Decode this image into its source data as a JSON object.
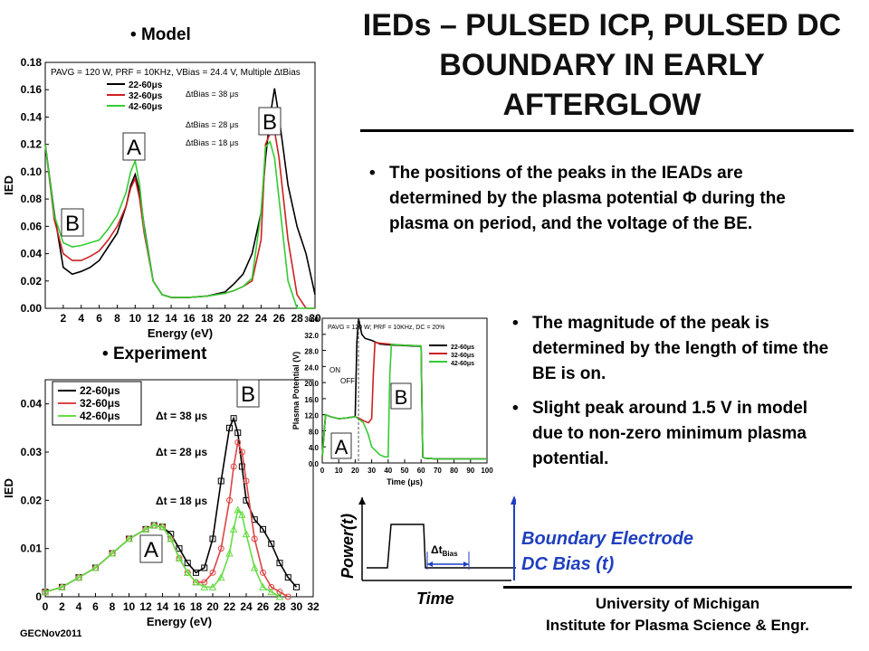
{
  "title": "IEDs – PULSED ICP, PULSED DC BOUNDARY IN EARLY AFTERGLOW",
  "bullets_right": [
    "The positions of the peaks in the IEADs are determined by the plasma potential Φ during the plasma on period, and the voltage of the BE."
  ],
  "bullets_mid": [
    "The magnitude of the peak is determined by the length of time the BE is on.",
    "Slight peak around 1.5 V in model due to non-zero minimum plasma potential."
  ],
  "labels": {
    "model": "Model",
    "experiment": "Experiment",
    "bullet_symbol": "•",
    "bullet_symbol2": ""
  },
  "footer": {
    "left": "GECNov2011",
    "univ_line1": "University of Michigan",
    "univ_line2": "Institute for Plasma Science & Engr."
  },
  "timing": {
    "ylabel": "Power(t)",
    "xlabel": "Time",
    "dt_label": "Δt",
    "dt_sub": "Bias",
    "bias_line1": "Boundary Electrode",
    "bias_line2": "DC Bias (t)"
  },
  "chart_data": [
    {
      "id": "model",
      "type": "line",
      "title": "P_AVG = 120 W, PRF = 10KHz, V_Bias = 24.4 V, Multiple Δt_Bias",
      "xlabel": "Energy (eV)",
      "ylabel": "IED",
      "xlim": [
        0,
        30
      ],
      "ylim": [
        0,
        0.18
      ],
      "xticks": [
        "2",
        "4",
        "6",
        "8",
        "10",
        "12",
        "14",
        "16",
        "18",
        "20",
        "22",
        "24",
        "26",
        "28",
        "30"
      ],
      "yticks": [
        "0.00",
        "0.02",
        "0.04",
        "0.06",
        "0.08",
        "0.10",
        "0.12",
        "0.14",
        "0.16",
        "0.18"
      ],
      "legend": [
        "22-60μs",
        "32-60μs",
        "42-60μs"
      ],
      "annotations": [
        "Δt_Bias = 38 μs",
        "Δt_Bias = 28 μs",
        "Δt_Bias = 18 μs",
        "A",
        "B",
        "B"
      ],
      "series": [
        {
          "name": "22-60μs",
          "color": "#000000",
          "x": [
            0,
            1,
            2,
            3,
            4,
            5,
            6,
            7,
            8,
            9,
            9.5,
            10,
            10.5,
            11,
            12,
            13,
            14,
            16,
            18,
            20,
            21,
            22,
            23,
            24,
            24.5,
            25,
            25.5,
            26,
            27,
            28,
            29,
            30
          ],
          "y": [
            0.12,
            0.07,
            0.03,
            0.025,
            0.027,
            0.03,
            0.035,
            0.045,
            0.055,
            0.075,
            0.09,
            0.098,
            0.085,
            0.06,
            0.02,
            0.01,
            0.008,
            0.008,
            0.009,
            0.012,
            0.018,
            0.025,
            0.04,
            0.07,
            0.11,
            0.14,
            0.161,
            0.14,
            0.09,
            0.06,
            0.04,
            0.01
          ]
        },
        {
          "name": "32-60μs",
          "color": "#cc2020",
          "x": [
            0,
            1,
            2,
            3,
            4,
            5,
            6,
            7,
            8,
            9,
            9.5,
            10,
            10.5,
            11,
            12,
            13,
            14,
            16,
            18,
            20,
            21,
            22,
            23,
            24,
            24.5,
            25,
            25.5,
            26,
            27,
            28,
            29,
            30
          ],
          "y": [
            0.12,
            0.065,
            0.04,
            0.035,
            0.035,
            0.038,
            0.042,
            0.05,
            0.06,
            0.075,
            0.088,
            0.095,
            0.08,
            0.055,
            0.02,
            0.01,
            0.008,
            0.008,
            0.009,
            0.011,
            0.013,
            0.016,
            0.02,
            0.05,
            0.12,
            0.128,
            0.13,
            0.11,
            0.05,
            0.01,
            0.0,
            0.0
          ]
        },
        {
          "name": "42-60μs",
          "color": "#33cc33",
          "x": [
            0,
            1,
            2,
            3,
            4,
            5,
            6,
            7,
            8,
            9,
            9.5,
            10,
            10.5,
            11,
            12,
            13,
            14,
            16,
            18,
            20,
            21,
            22,
            23,
            24,
            24.5,
            25,
            25.5,
            26,
            27,
            28,
            29,
            30
          ],
          "y": [
            0.12,
            0.068,
            0.048,
            0.045,
            0.046,
            0.048,
            0.05,
            0.058,
            0.068,
            0.085,
            0.1,
            0.108,
            0.09,
            0.058,
            0.02,
            0.01,
            0.008,
            0.008,
            0.009,
            0.011,
            0.013,
            0.016,
            0.022,
            0.07,
            0.118,
            0.122,
            0.11,
            0.08,
            0.02,
            0.0,
            0.0,
            0.0
          ]
        }
      ]
    },
    {
      "id": "experiment",
      "type": "line",
      "xlabel": "Energy (eV)",
      "ylabel": "IED",
      "xlim": [
        0,
        32
      ],
      "ylim": [
        0,
        0.045
      ],
      "xticks": [
        "0",
        "2",
        "4",
        "6",
        "8",
        "10",
        "12",
        "14",
        "16",
        "18",
        "20",
        "22",
        "24",
        "26",
        "28",
        "30",
        "32"
      ],
      "yticks": [
        "0",
        "0.01",
        "0.02",
        "0.03",
        "0.04"
      ],
      "legend": [
        "22-60μs",
        "32-60μs",
        "42-60μs"
      ],
      "annotations": [
        "Δt = 38 μs",
        "Δt = 28 μs",
        "Δt = 18 μs",
        "A",
        "B"
      ],
      "series": [
        {
          "name": "22-60μs",
          "color": "#000000",
          "x": [
            0,
            2,
            4,
            6,
            8,
            10,
            12,
            13,
            14,
            15,
            16,
            17,
            18,
            19,
            20,
            21,
            22,
            22.5,
            23,
            23.5,
            24,
            25,
            26,
            27,
            28,
            29,
            30
          ],
          "y": [
            0.001,
            0.002,
            0.004,
            0.006,
            0.009,
            0.012,
            0.014,
            0.0148,
            0.0145,
            0.013,
            0.01,
            0.007,
            0.005,
            0.006,
            0.012,
            0.024,
            0.035,
            0.037,
            0.034,
            0.027,
            0.02,
            0.016,
            0.014,
            0.011,
            0.007,
            0.004,
            0.002
          ]
        },
        {
          "name": "32-60μs",
          "color": "#dd4444",
          "x": [
            0,
            2,
            4,
            6,
            8,
            10,
            12,
            13,
            14,
            15,
            16,
            17,
            18,
            19,
            20,
            21,
            22,
            22.5,
            23,
            23.5,
            24,
            25,
            26,
            27,
            28,
            29
          ],
          "y": [
            0.001,
            0.002,
            0.004,
            0.006,
            0.009,
            0.012,
            0.014,
            0.0148,
            0.0145,
            0.012,
            0.008,
            0.005,
            0.003,
            0.003,
            0.005,
            0.01,
            0.02,
            0.027,
            0.032,
            0.03,
            0.024,
            0.012,
            0.005,
            0.002,
            0.001,
            0.0
          ]
        },
        {
          "name": "42-60μs",
          "color": "#66dd44",
          "x": [
            0,
            2,
            4,
            6,
            8,
            10,
            12,
            13,
            14,
            15,
            16,
            17,
            18,
            19,
            20,
            21,
            22,
            22.5,
            23,
            23.5,
            24,
            25,
            26,
            27,
            28
          ],
          "y": [
            0.001,
            0.002,
            0.004,
            0.006,
            0.009,
            0.012,
            0.014,
            0.0148,
            0.0145,
            0.012,
            0.008,
            0.005,
            0.003,
            0.002,
            0.002,
            0.004,
            0.009,
            0.014,
            0.018,
            0.017,
            0.013,
            0.006,
            0.002,
            0.001,
            0.0
          ]
        }
      ]
    },
    {
      "id": "plasma-potential",
      "type": "line",
      "title": "P_AVG = 120 W; PRF = 10KHz, DC = 20%",
      "xlabel": "Time (μs)",
      "ylabel": "Plasma Potential (V)",
      "xlim": [
        0,
        100
      ],
      "ylim": [
        0,
        36
      ],
      "xticks": [
        "0",
        "10",
        "20",
        "30",
        "40",
        "50",
        "60",
        "70",
        "80",
        "90",
        "100"
      ],
      "yticks": [
        "0.0",
        "4.0",
        "8.0",
        "12.0",
        "16.0",
        "20.0",
        "24.0",
        "28.0",
        "32.0",
        "36.0"
      ],
      "legend": [
        "22-60μs",
        "32-60μs",
        "42-60μs"
      ],
      "annotations": [
        "ON",
        "OFF",
        "A",
        "B"
      ],
      "series": [
        {
          "name": "22-60μs",
          "color": "#000000",
          "x": [
            0,
            2,
            5,
            10,
            15,
            18,
            20,
            21,
            22,
            23,
            24,
            26,
            30,
            35,
            40,
            45,
            50,
            55,
            60,
            61,
            62,
            65,
            70,
            80,
            90,
            100
          ],
          "y": [
            1.5,
            12,
            11.5,
            11,
            11.2,
            11.4,
            11.5,
            30,
            36,
            34,
            32,
            31,
            30.5,
            29.6,
            29.4,
            29.3,
            29.2,
            29.1,
            29,
            1.5,
            1.2,
            1.1,
            1.0,
            1.0,
            1.0,
            1.0
          ]
        },
        {
          "name": "32-60μs",
          "color": "#cc2020",
          "x": [
            0,
            2,
            5,
            10,
            15,
            18,
            20,
            22,
            25,
            28,
            30,
            31,
            32,
            35,
            40,
            45,
            50,
            55,
            60,
            61,
            62,
            65,
            70,
            80,
            90,
            100
          ],
          "y": [
            1.5,
            12,
            11.5,
            11,
            11.2,
            11.4,
            11.5,
            11.2,
            10.5,
            10,
            11,
            22,
            30,
            29.8,
            29.6,
            29.4,
            29.3,
            29.2,
            29.1,
            1.5,
            1.2,
            1.1,
            1.0,
            1.0,
            1.0,
            1.0
          ]
        },
        {
          "name": "42-60μs",
          "color": "#33cc33",
          "x": [
            0,
            2,
            5,
            10,
            15,
            18,
            20,
            22,
            25,
            28,
            30,
            35,
            38,
            40,
            41,
            42,
            45,
            50,
            55,
            60,
            61,
            62,
            65,
            70,
            80,
            90,
            100
          ],
          "y": [
            1.5,
            12,
            11.5,
            11,
            11.2,
            11.4,
            11.5,
            11,
            10,
            7,
            4,
            2,
            1.5,
            1.5,
            22,
            29.5,
            29.4,
            29.3,
            29.2,
            29.1,
            1.5,
            1.2,
            1.1,
            1.0,
            1.0,
            1.0,
            1.0
          ]
        }
      ]
    }
  ]
}
